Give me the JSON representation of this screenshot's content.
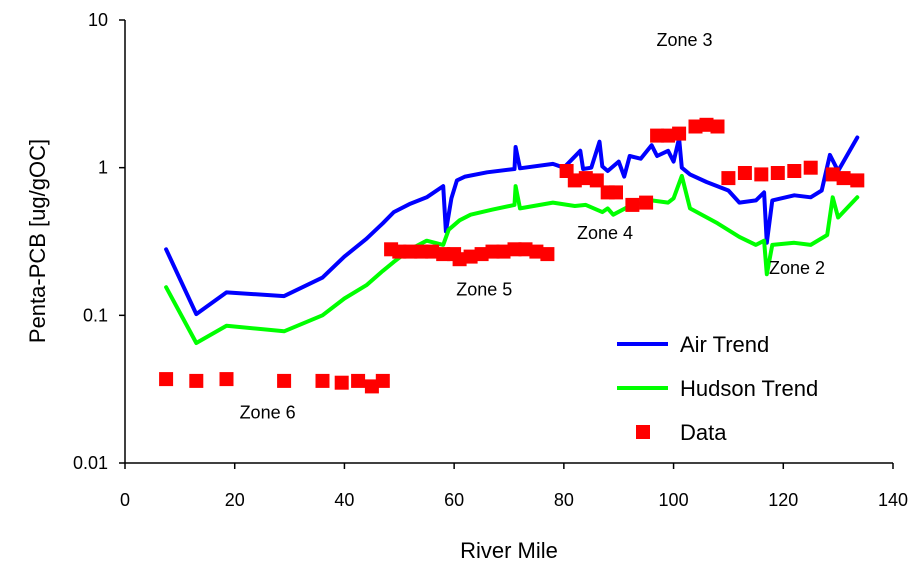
{
  "chart_data": {
    "type": "line",
    "title": "",
    "xlabel": "River Mile",
    "ylabel": "Penta-PCB [ug/gOC]",
    "xlim": [
      0,
      140
    ],
    "ylim": [
      0.01,
      10
    ],
    "yscale": "log",
    "grid": false,
    "legend_position": "bottom-right",
    "x_ticks": [
      0,
      20,
      40,
      60,
      80,
      100,
      120,
      140
    ],
    "x_tick_labels": [
      "0",
      "20",
      "40",
      "60",
      "80",
      "100",
      "120",
      "140"
    ],
    "y_ticks": [
      0.01,
      0.1,
      1,
      10
    ],
    "y_tick_labels": [
      "0.01",
      "0.1",
      "1",
      "10"
    ],
    "zone_labels": [
      {
        "text": "Zone 3",
        "x": 102,
        "y": 7.3
      },
      {
        "text": "Zone 4",
        "x": 87.5,
        "y": 0.36
      },
      {
        "text": "Zone 5",
        "x": 65.5,
        "y": 0.15
      },
      {
        "text": "Zone 2",
        "x": 122.5,
        "y": 0.21
      },
      {
        "text": "Zone 6",
        "x": 26,
        "y": 0.022
      }
    ],
    "series": [
      {
        "name": "Air Trend",
        "type": "line",
        "color": "#0000ff",
        "x": [
          7.5,
          13,
          18.5,
          29,
          36,
          40,
          44,
          47,
          49,
          52,
          55,
          58,
          58.5,
          59.5,
          60.5,
          62,
          66,
          71,
          71.2,
          72,
          78,
          80,
          83,
          83.5,
          85,
          86.5,
          87,
          88,
          90,
          91,
          92,
          94,
          96,
          97,
          99,
          100,
          101,
          101.5,
          103,
          106,
          110,
          112,
          115,
          116.5,
          117,
          118,
          122,
          125,
          127,
          128.5,
          130,
          133.5
        ],
        "y": [
          0.28,
          0.102,
          0.143,
          0.135,
          0.18,
          0.25,
          0.33,
          0.42,
          0.5,
          0.57,
          0.63,
          0.75,
          0.37,
          0.62,
          0.82,
          0.87,
          0.93,
          0.98,
          1.38,
          0.99,
          1.06,
          1.0,
          1.3,
          0.98,
          1.0,
          1.5,
          1.02,
          0.95,
          1.1,
          0.87,
          1.2,
          1.15,
          1.42,
          1.2,
          1.3,
          1.1,
          1.58,
          1.0,
          0.9,
          0.8,
          0.7,
          0.58,
          0.6,
          0.68,
          0.31,
          0.6,
          0.65,
          0.63,
          0.7,
          1.22,
          0.95,
          1.6
        ]
      },
      {
        "name": "Hudson Trend",
        "type": "line",
        "color": "#00ff00",
        "x": [
          7.5,
          13,
          18.5,
          29,
          36,
          40,
          44,
          47,
          49,
          52,
          55,
          58,
          59,
          61,
          63,
          67,
          71,
          71.2,
          72,
          78,
          82,
          84,
          87,
          88,
          89,
          92,
          96,
          99,
          100,
          101.5,
          103,
          108,
          112,
          115,
          116.5,
          117,
          118,
          122,
          125,
          128,
          129,
          130,
          133.5
        ],
        "y": [
          0.155,
          0.065,
          0.085,
          0.078,
          0.1,
          0.13,
          0.16,
          0.2,
          0.23,
          0.28,
          0.32,
          0.3,
          0.38,
          0.44,
          0.48,
          0.52,
          0.56,
          0.75,
          0.53,
          0.58,
          0.55,
          0.56,
          0.5,
          0.53,
          0.48,
          0.55,
          0.6,
          0.58,
          0.62,
          0.88,
          0.53,
          0.42,
          0.34,
          0.3,
          0.32,
          0.19,
          0.3,
          0.31,
          0.3,
          0.35,
          0.63,
          0.46,
          0.63
        ]
      },
      {
        "name": "Data",
        "type": "scatter",
        "color": "#ff0000",
        "x": [
          7.5,
          13,
          18.5,
          29,
          36,
          39.5,
          42.5,
          45,
          47,
          48.5,
          50,
          52,
          54,
          56,
          58,
          60,
          61,
          63,
          65,
          67,
          69,
          71,
          73,
          75,
          77,
          80.5,
          82,
          84,
          86,
          88,
          89.5,
          92.5,
          95,
          97,
          99,
          101,
          104,
          106,
          108,
          110,
          113,
          116,
          119,
          122,
          125,
          129,
          131,
          133.5
        ],
        "y": [
          0.037,
          0.036,
          0.037,
          0.036,
          0.036,
          0.035,
          0.036,
          0.033,
          0.036,
          0.28,
          0.27,
          0.27,
          0.27,
          0.27,
          0.26,
          0.26,
          0.24,
          0.25,
          0.26,
          0.27,
          0.27,
          0.28,
          0.28,
          0.27,
          0.26,
          0.95,
          0.82,
          0.85,
          0.82,
          0.68,
          0.68,
          0.56,
          0.58,
          1.65,
          1.65,
          1.7,
          1.9,
          1.95,
          1.9,
          0.85,
          0.92,
          0.9,
          0.92,
          0.95,
          1.0,
          0.9,
          0.85,
          0.82
        ]
      }
    ]
  }
}
